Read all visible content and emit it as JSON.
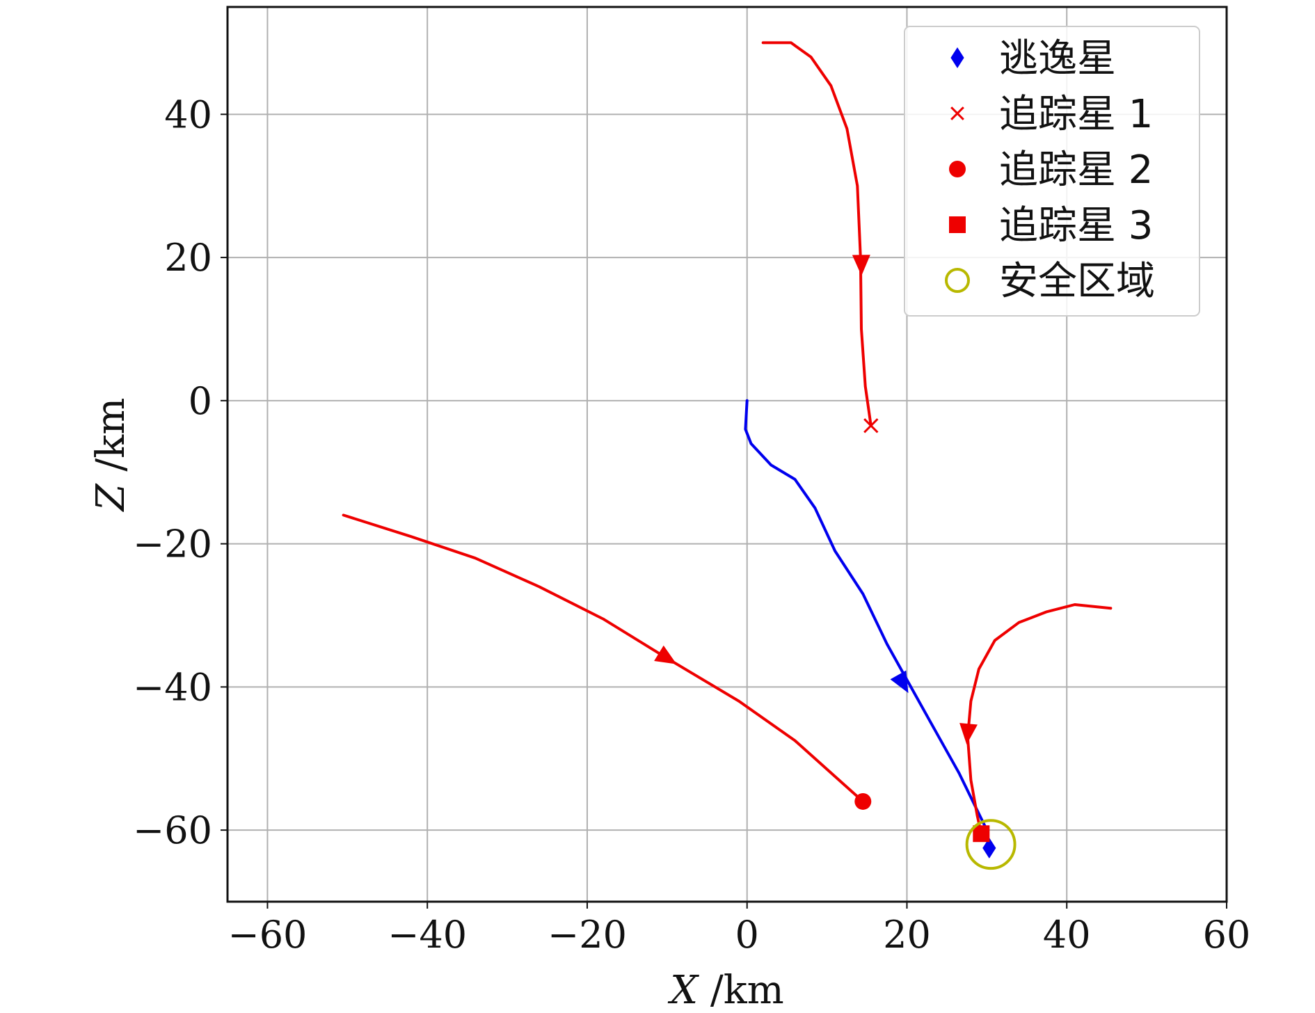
{
  "chart_data": {
    "type": "line",
    "title": "",
    "xlabel": {
      "var": "X",
      "unit": " /km"
    },
    "ylabel": {
      "var": "Z",
      "unit": " /km"
    },
    "xlim": [
      -65,
      60
    ],
    "ylim": [
      -70,
      55
    ],
    "xticks": [
      -60,
      -40,
      -20,
      0,
      20,
      40,
      60
    ],
    "yticks": [
      -60,
      -40,
      -20,
      0,
      20,
      40
    ],
    "grid": true,
    "legend_position": "top-right",
    "series": [
      {
        "name": "逃逸星",
        "color": "#0000ee",
        "marker": "diamond",
        "points": [
          [
            0,
            0
          ],
          [
            -0.2,
            -4
          ],
          [
            0.5,
            -6
          ],
          [
            3,
            -9
          ],
          [
            6,
            -11
          ],
          [
            8.5,
            -15
          ],
          [
            11,
            -21
          ],
          [
            14.5,
            -27
          ],
          [
            17.5,
            -34
          ],
          [
            20,
            -39
          ],
          [
            23,
            -45
          ],
          [
            26.5,
            -52
          ],
          [
            30,
            -60
          ],
          [
            30.3,
            -62.5
          ]
        ],
        "arrows": [
          [
            19.5,
            -39.5
          ]
        ],
        "marker_at": [
          30.3,
          -62.5
        ]
      },
      {
        "name": "追踪星 1",
        "color": "#ee0000",
        "marker": "x",
        "points": [
          [
            2,
            50
          ],
          [
            5.5,
            50
          ],
          [
            8,
            48
          ],
          [
            10.5,
            44
          ],
          [
            12.5,
            38
          ],
          [
            13.8,
            30
          ],
          [
            14.2,
            20
          ],
          [
            14.3,
            10
          ],
          [
            14.8,
            2
          ],
          [
            15.5,
            -3.5
          ]
        ],
        "arrows": [
          [
            14.3,
            19
          ]
        ],
        "marker_at": [
          15.5,
          -3.5
        ]
      },
      {
        "name": "追踪星 2",
        "color": "#ee0000",
        "marker": "circle",
        "points": [
          [
            -50.5,
            -16
          ],
          [
            -42,
            -19
          ],
          [
            -34,
            -22
          ],
          [
            -26,
            -26
          ],
          [
            -18,
            -30.5
          ],
          [
            -10,
            -36
          ],
          [
            -1,
            -42
          ],
          [
            6,
            -47.5
          ],
          [
            11,
            -52.5
          ],
          [
            14.5,
            -56
          ]
        ],
        "arrows": [
          [
            -10,
            -36
          ]
        ],
        "marker_at": [
          14.5,
          -56
        ]
      },
      {
        "name": "追踪星 3",
        "color": "#ee0000",
        "marker": "square",
        "points": [
          [
            45.5,
            -29
          ],
          [
            41,
            -28.5
          ],
          [
            37.5,
            -29.5
          ],
          [
            34,
            -31
          ],
          [
            31,
            -33.5
          ],
          [
            29,
            -37.5
          ],
          [
            28,
            -42
          ],
          [
            27.6,
            -47
          ],
          [
            28,
            -53
          ],
          [
            28.8,
            -58
          ],
          [
            29.3,
            -60.5
          ]
        ],
        "arrows": [
          [
            27.6,
            -46.5
          ]
        ],
        "marker_at": [
          29.3,
          -60.5
        ]
      },
      {
        "name": "安全区域",
        "color": "#b8b800",
        "marker": "circle-open",
        "points": [],
        "arrows": [],
        "marker_at": [
          30.5,
          -62
        ],
        "radius": 3
      }
    ]
  }
}
